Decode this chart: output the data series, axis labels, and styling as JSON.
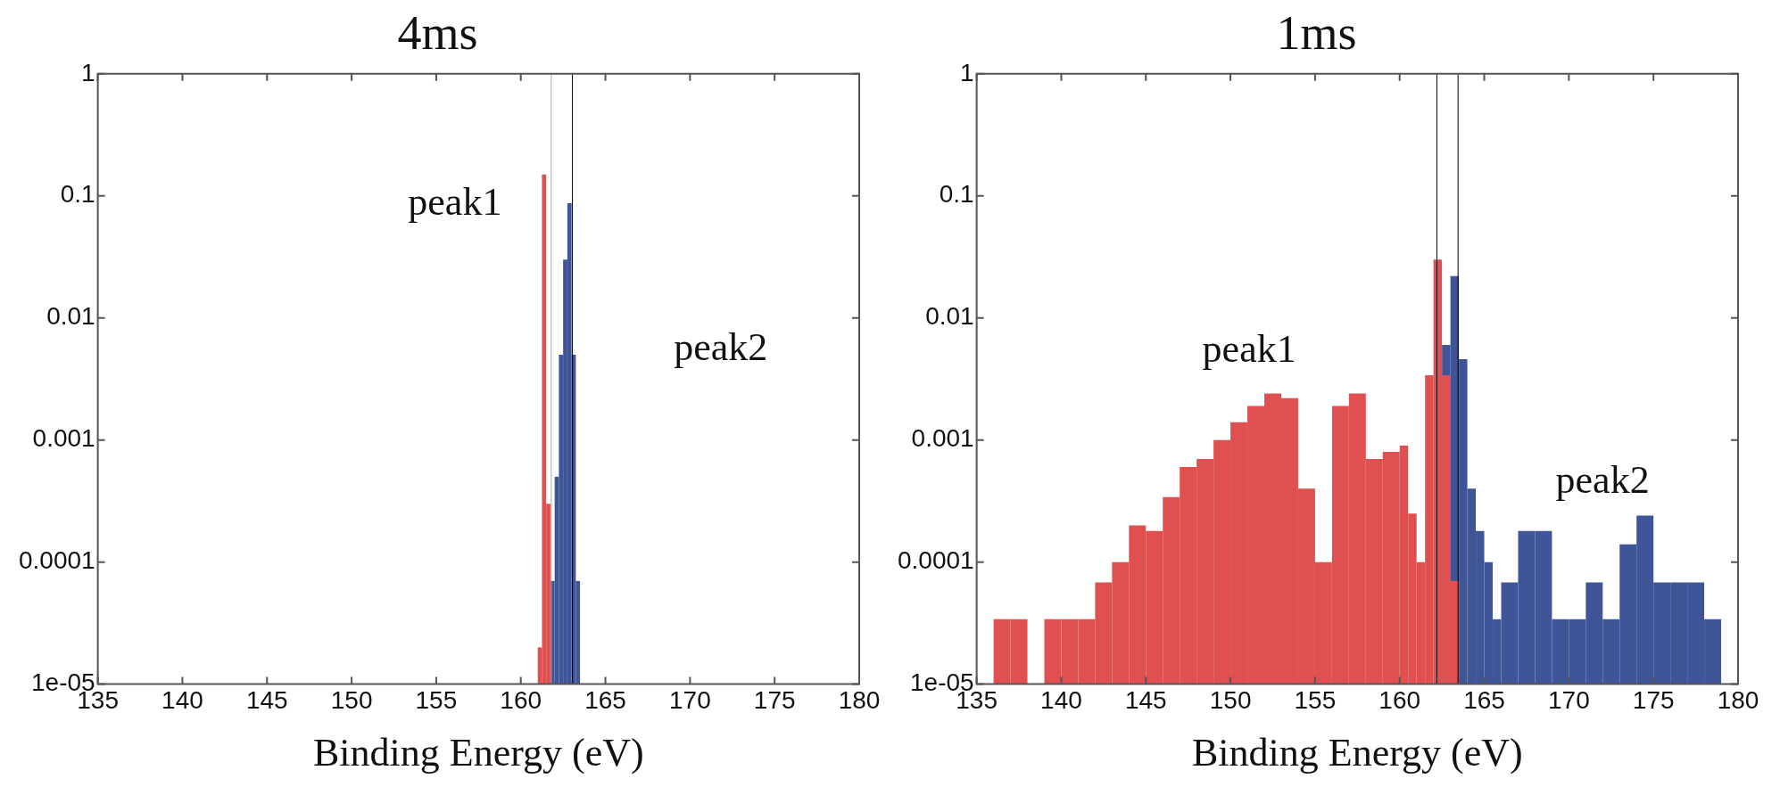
{
  "chart_data": [
    {
      "type": "histogram",
      "title": "4ms",
      "xlabel": "Binding Energy (eV)",
      "log": "y",
      "grid": false,
      "bins": [
        161,
        161.25,
        161.5,
        161.75,
        162,
        162.25,
        162.5,
        162.75,
        163,
        163.25,
        163.5
      ],
      "series": [
        {
          "name": "peak2",
          "color": "#3f5597",
          "values": [
            null,
            null,
            null,
            7e-05,
            0.0005,
            0.005,
            0.03,
            0.087,
            0.005,
            7e-05
          ]
        },
        {
          "name": "peak1",
          "color": "#e05050",
          "values": [
            2e-05,
            0.15,
            0.0003,
            null,
            null,
            null,
            null,
            null,
            null,
            null
          ]
        }
      ],
      "xlim": [
        135,
        180
      ],
      "xticks": [
        135,
        140,
        145,
        150,
        155,
        160,
        165,
        170,
        175,
        180
      ],
      "ylim": [
        1e-05,
        1
      ],
      "yticks": [
        {
          "value": 1e-05,
          "label": "1e-05"
        },
        0.0001,
        0.001,
        0.01,
        0.1,
        1
      ],
      "ref_lines": [
        {
          "axis": "x",
          "value": 161.8,
          "color": "#aaaaaa"
        },
        {
          "axis": "x",
          "value": 163.05,
          "color": "#000000"
        }
      ]
    },
    {
      "type": "histogram",
      "title": "1ms",
      "xlabel": "Binding Energy (eV)",
      "log": "y",
      "grid": false,
      "bins": [
        136,
        137,
        138,
        139,
        140,
        141,
        142,
        143,
        144,
        145,
        146,
        147,
        148,
        149,
        150,
        151,
        152,
        153,
        154,
        155,
        156,
        157,
        158,
        159,
        160,
        160.5,
        161,
        161.5,
        162,
        162.5,
        163,
        163.5,
        164,
        164.5,
        165,
        165.5,
        166,
        167,
        168,
        169,
        170,
        171,
        172,
        173,
        174,
        175,
        176,
        177,
        178,
        179
      ],
      "series": [
        {
          "name": "peak2",
          "color": "#3f5597",
          "values": [
            null,
            null,
            null,
            null,
            null,
            null,
            null,
            null,
            null,
            null,
            null,
            null,
            null,
            null,
            null,
            null,
            null,
            null,
            null,
            null,
            null,
            null,
            null,
            null,
            null,
            null,
            null,
            null,
            null,
            0.006,
            0.022,
            0.0046,
            0.0004,
            0.00018,
            0.0001,
            3.4e-05,
            6.8e-05,
            0.00018,
            0.00018,
            3.4e-05,
            3.4e-05,
            6.8e-05,
            3.4e-05,
            0.00014,
            0.00024,
            6.8e-05,
            6.8e-05,
            6.8e-05,
            3.4e-05
          ]
        },
        {
          "name": "peak1",
          "color": "#e05050",
          "values": [
            3.4e-05,
            3.4e-05,
            null,
            3.4e-05,
            3.4e-05,
            3.4e-05,
            6.8e-05,
            0.0001,
            0.0002,
            0.00018,
            0.00034,
            0.0006,
            0.0007,
            0.001,
            0.0014,
            0.0019,
            0.0024,
            0.0022,
            0.0004,
            0.0001,
            0.0019,
            0.0024,
            0.0007,
            0.0008,
            0.0009,
            0.00025,
            0.0001,
            0.0034,
            0.03,
            0.0034,
            7e-05,
            null,
            null,
            null,
            null,
            null,
            null,
            null,
            null,
            null,
            null,
            null,
            null,
            null,
            null,
            null,
            null,
            null,
            null
          ]
        }
      ],
      "xlim": [
        135,
        180
      ],
      "xticks": [
        135,
        140,
        145,
        150,
        155,
        160,
        165,
        170,
        175,
        180
      ],
      "ylim": [
        1e-05,
        1
      ],
      "yticks": [
        {
          "value": 1e-05,
          "label": "1e-05"
        },
        0.0001,
        0.001,
        0.01,
        0.1,
        1
      ],
      "ref_lines": [
        {
          "axis": "x",
          "value": 162.2,
          "color": "#000000"
        },
        {
          "axis": "x",
          "value": 163.45,
          "color": "#000000"
        }
      ]
    }
  ]
}
